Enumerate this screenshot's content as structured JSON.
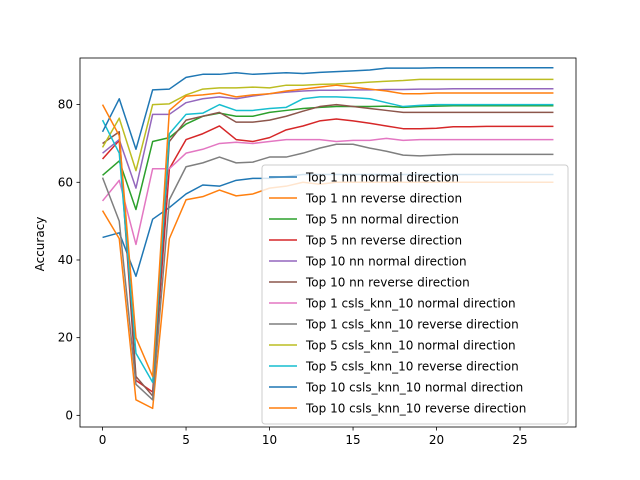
{
  "chart_data": {
    "type": "line",
    "title": "",
    "xlabel": "",
    "ylabel": "Accuracy",
    "xlim": [
      -1.35,
      28.35
    ],
    "ylim": [
      -3,
      92
    ],
    "xticks": [
      0,
      5,
      10,
      15,
      20,
      25
    ],
    "yticks": [
      0,
      20,
      40,
      60,
      80
    ],
    "grid": false,
    "legend_position": "lower right",
    "x": [
      0,
      1,
      2,
      3,
      4,
      5,
      6,
      7,
      8,
      9,
      10,
      11,
      12,
      13,
      14,
      15,
      16,
      17,
      18,
      19,
      20,
      21,
      22,
      23,
      24,
      25,
      26,
      27
    ],
    "series": [
      {
        "name": "Top 1 nn normal direction",
        "color": "#1f77b4",
        "values": [
          45.8,
          47.0,
          35.8,
          50.5,
          53.5,
          57.0,
          59.3,
          59.0,
          60.5,
          61.0,
          61.0,
          61.5,
          62.0,
          62.0,
          62.0,
          62.0,
          62.0,
          62.0,
          62.0,
          62.0,
          62.0,
          62.0,
          62.0,
          62.0,
          62.0,
          62.0,
          62.0,
          62.0
        ]
      },
      {
        "name": "Top 1 nn reverse direction",
        "color": "#ff7f0e",
        "values": [
          52.7,
          45.5,
          4.0,
          1.8,
          45.5,
          55.5,
          56.3,
          58.0,
          56.5,
          57.0,
          58.5,
          59.0,
          60.0,
          59.5,
          60.0,
          60.0,
          60.0,
          60.0,
          60.0,
          60.0,
          60.0,
          60.0,
          60.0,
          60.0,
          60.0,
          60.0,
          60.0,
          60.0
        ]
      },
      {
        "name": "Top 5 nn normal direction",
        "color": "#2ca02c",
        "values": [
          61.8,
          65.5,
          53.0,
          70.5,
          71.5,
          75.0,
          77.0,
          77.8,
          77.0,
          77.0,
          78.0,
          78.5,
          79.0,
          79.3,
          79.5,
          79.5,
          79.5,
          79.6,
          79.3,
          79.5,
          79.6,
          79.7,
          79.7,
          79.7,
          79.7,
          79.7,
          79.7,
          79.7
        ]
      },
      {
        "name": "Top 5 nn reverse direction",
        "color": "#d62728",
        "values": [
          66.0,
          70.8,
          9.0,
          6.0,
          63.5,
          71.0,
          72.5,
          74.5,
          71.0,
          70.5,
          71.5,
          73.5,
          74.5,
          75.8,
          76.3,
          75.8,
          75.2,
          74.5,
          73.8,
          73.8,
          73.9,
          74.3,
          74.3,
          74.4,
          74.4,
          74.4,
          74.4,
          74.4
        ]
      },
      {
        "name": "Top 10 nn normal direction",
        "color": "#9467bd",
        "values": [
          67.5,
          71.0,
          58.5,
          77.5,
          77.5,
          80.5,
          81.5,
          82.0,
          81.5,
          82.2,
          82.8,
          83.2,
          83.5,
          83.7,
          83.7,
          83.8,
          83.8,
          83.9,
          83.9,
          84.0,
          84.0,
          84.1,
          84.1,
          84.1,
          84.1,
          84.1,
          84.1,
          84.1
        ]
      },
      {
        "name": "Top 10 nn reverse direction",
        "color": "#8c564b",
        "values": [
          70.0,
          73.0,
          10.0,
          5.0,
          70.5,
          76.0,
          77.0,
          78.0,
          75.5,
          75.5,
          76.0,
          77.0,
          78.3,
          79.5,
          80.0,
          79.5,
          79.0,
          78.5,
          78.0,
          78.0,
          78.0,
          78.0,
          78.0,
          78.0,
          78.0,
          78.0,
          78.0,
          78.0
        ]
      },
      {
        "name": "Top 1 csls_knn_10 normal direction",
        "color": "#e377c2",
        "values": [
          55.2,
          60.5,
          44.0,
          63.5,
          63.5,
          67.5,
          68.5,
          70.0,
          70.3,
          70.0,
          70.5,
          71.0,
          71.0,
          71.0,
          70.5,
          70.8,
          70.8,
          71.3,
          70.8,
          71.0,
          71.0,
          71.0,
          71.0,
          71.0,
          71.0,
          71.0,
          71.0,
          71.0
        ]
      },
      {
        "name": "Top 1 csls_knn_10 reverse direction",
        "color": "#7f7f7f",
        "values": [
          61.2,
          50.0,
          8.0,
          4.0,
          55.5,
          64.0,
          65.0,
          66.5,
          65.0,
          65.2,
          66.5,
          66.5,
          67.5,
          68.8,
          69.8,
          69.8,
          68.8,
          68.0,
          67.0,
          66.8,
          67.0,
          67.2,
          67.2,
          67.2,
          67.2,
          67.2,
          67.2,
          67.2
        ]
      },
      {
        "name": "Top 5 csls_knn_10 normal direction",
        "color": "#bcbd22",
        "values": [
          69.0,
          76.5,
          63.0,
          80.0,
          80.2,
          82.5,
          84.0,
          84.3,
          84.3,
          84.5,
          84.3,
          85.0,
          85.0,
          85.2,
          85.3,
          85.5,
          85.8,
          86.0,
          86.2,
          86.5,
          86.5,
          86.5,
          86.5,
          86.5,
          86.5,
          86.5,
          86.5,
          86.5
        ]
      },
      {
        "name": "Top 5 csls_knn_10 reverse direction",
        "color": "#17becf",
        "values": [
          76.0,
          67.5,
          16.0,
          8.5,
          72.5,
          77.5,
          77.8,
          80.0,
          78.5,
          78.5,
          79.0,
          79.3,
          81.5,
          82.0,
          82.0,
          81.8,
          81.5,
          80.5,
          79.5,
          79.8,
          80.0,
          80.0,
          80.0,
          80.0,
          80.0,
          80.0,
          80.0,
          80.0
        ]
      },
      {
        "name": "Top 10 csls_knn_10 normal direction",
        "color": "#1f77b4",
        "values": [
          73.0,
          81.5,
          68.5,
          83.8,
          84.0,
          87.0,
          87.8,
          87.8,
          88.2,
          87.8,
          88.0,
          88.2,
          88.0,
          88.3,
          88.5,
          88.7,
          88.9,
          89.4,
          89.4,
          89.4,
          89.5,
          89.5,
          89.5,
          89.5,
          89.5,
          89.5,
          89.5,
          89.5
        ]
      },
      {
        "name": "Top 10 csls_knn_10 reverse direction",
        "color": "#ff7f0e",
        "values": [
          80.0,
          72.0,
          20.0,
          10.0,
          78.5,
          82.2,
          82.5,
          83.0,
          82.0,
          82.5,
          82.8,
          83.5,
          84.0,
          84.5,
          85.0,
          84.5,
          84.0,
          83.5,
          82.8,
          82.8,
          83.0,
          83.0,
          83.0,
          83.0,
          83.0,
          83.0,
          83.0,
          83.0
        ]
      }
    ]
  }
}
